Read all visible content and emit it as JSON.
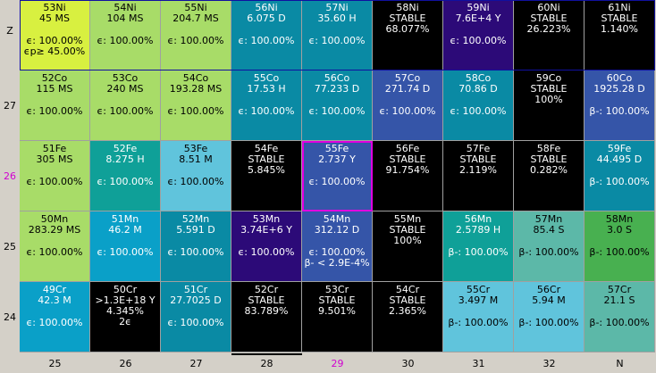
{
  "row_labels": [
    "Z",
    "27",
    "26",
    "25",
    "24"
  ],
  "col_labels": [
    "25",
    "26",
    "27",
    "28",
    "29",
    "30",
    "31",
    "32",
    "N"
  ],
  "highlight_color": "#d000d0",
  "rows": [
    [
      {
        "name": "53Ni",
        "hl": "45 MS",
        "d1": "ϵ: 100.00%",
        "d2": "ϵp≥ 45.00%",
        "bg": "#d8f040",
        "tc": "light"
      },
      {
        "name": "54Ni",
        "hl": "104 MS",
        "d1": "ϵ: 100.00%",
        "d2": "",
        "bg": "#a8dc68",
        "tc": "light"
      },
      {
        "name": "55Ni",
        "hl": "204.7 MS",
        "d1": "ϵ: 100.00%",
        "d2": "",
        "bg": "#a8dc68",
        "tc": "light"
      },
      {
        "name": "56Ni",
        "hl": "6.075 D",
        "d1": "ϵ: 100.00%",
        "d2": "",
        "bg": "#0a8aa4",
        "tc": "dark"
      },
      {
        "name": "57Ni",
        "hl": "35.60 H",
        "d1": "ϵ: 100.00%",
        "d2": "",
        "bg": "#0a8aa4",
        "tc": "dark"
      },
      {
        "name": "58Ni",
        "hl": "STABLE",
        "hl2": "68.077%",
        "d1": "",
        "d2": "",
        "bg": "#000000",
        "tc": "dark"
      },
      {
        "name": "59Ni",
        "hl": "7.6E+4 Y",
        "d1": "ϵ: 100.00%",
        "d2": "",
        "bg": "#2c0a78",
        "tc": "dark"
      },
      {
        "name": "60Ni",
        "hl": "STABLE",
        "hl2": "26.223%",
        "d1": "",
        "d2": "",
        "bg": "#000000",
        "tc": "dark"
      },
      {
        "name": "61Ni",
        "hl": "STABLE",
        "hl2": "1.140%",
        "d1": "",
        "d2": "",
        "bg": "#000000",
        "tc": "dark"
      }
    ],
    [
      {
        "name": "52Co",
        "hl": "115 MS",
        "d1": "ϵ: 100.00%",
        "d2": "",
        "bg": "#a8dc68",
        "tc": "light"
      },
      {
        "name": "53Co",
        "hl": "240 MS",
        "d1": "ϵ: 100.00%",
        "d2": "",
        "bg": "#a8dc68",
        "tc": "light"
      },
      {
        "name": "54Co",
        "hl": "193.28 MS",
        "d1": "ϵ: 100.00%",
        "d2": "",
        "bg": "#a8dc68",
        "tc": "light"
      },
      {
        "name": "55Co",
        "hl": "17.53 H",
        "d1": "ϵ: 100.00%",
        "d2": "",
        "bg": "#0a8aa4",
        "tc": "dark"
      },
      {
        "name": "56Co",
        "hl": "77.233 D",
        "d1": "ϵ: 100.00%",
        "d2": "",
        "bg": "#0a8aa4",
        "tc": "dark"
      },
      {
        "name": "57Co",
        "hl": "271.74 D",
        "d1": "ϵ: 100.00%",
        "d2": "",
        "bg": "#3555a8",
        "tc": "dark"
      },
      {
        "name": "58Co",
        "hl": "70.86 D",
        "d1": "ϵ: 100.00%",
        "d2": "",
        "bg": "#0a8aa4",
        "tc": "dark"
      },
      {
        "name": "59Co",
        "hl": "STABLE",
        "hl2": "100%",
        "d1": "",
        "d2": "",
        "bg": "#000000",
        "tc": "dark"
      },
      {
        "name": "60Co",
        "hl": "1925.28 D",
        "d1": "β-: 100.00%",
        "d2": "",
        "bg": "#3555a8",
        "tc": "dark"
      }
    ],
    [
      {
        "name": "51Fe",
        "hl": "305 MS",
        "d1": "ϵ: 100.00%",
        "d2": "",
        "bg": "#a8dc68",
        "tc": "light"
      },
      {
        "name": "52Fe",
        "hl": "8.275 H",
        "d1": "ϵ: 100.00%",
        "d2": "",
        "bg": "#0fa098",
        "tc": "dark"
      },
      {
        "name": "53Fe",
        "hl": "8.51 M",
        "d1": "ϵ: 100.00%",
        "d2": "",
        "bg": "#60c4dc",
        "tc": "light"
      },
      {
        "name": "54Fe",
        "hl": "STABLE",
        "hl2": "5.845%",
        "d1": "",
        "d2": "",
        "bg": "#000000",
        "tc": "dark"
      },
      {
        "name": "55Fe",
        "hl": "2.737 Y",
        "d1": "ϵ: 100.00%",
        "d2": "",
        "bg": "#3555a8",
        "tc": "dark",
        "sel": true
      },
      {
        "name": "56Fe",
        "hl": "STABLE",
        "hl2": "91.754%",
        "d1": "",
        "d2": "",
        "bg": "#000000",
        "tc": "dark"
      },
      {
        "name": "57Fe",
        "hl": "STABLE",
        "hl2": "2.119%",
        "d1": "",
        "d2": "",
        "bg": "#000000",
        "tc": "dark"
      },
      {
        "name": "58Fe",
        "hl": "STABLE",
        "hl2": "0.282%",
        "d1": "",
        "d2": "",
        "bg": "#000000",
        "tc": "dark"
      },
      {
        "name": "59Fe",
        "hl": "44.495 D",
        "d1": "β-: 100.00%",
        "d2": "",
        "bg": "#0a8aa4",
        "tc": "dark"
      }
    ],
    [
      {
        "name": "50Mn",
        "hl": "283.29 MS",
        "d1": "ϵ: 100.00%",
        "d2": "",
        "bg": "#a8dc68",
        "tc": "light"
      },
      {
        "name": "51Mn",
        "hl": "46.2 M",
        "d1": "ϵ: 100.00%",
        "d2": "",
        "bg": "#0aa0c8",
        "tc": "dark"
      },
      {
        "name": "52Mn",
        "hl": "5.591 D",
        "d1": "ϵ: 100.00%",
        "d2": "",
        "bg": "#0a8aa4",
        "tc": "dark"
      },
      {
        "name": "53Mn",
        "hl": "3.74E+6 Y",
        "d1": "ϵ: 100.00%",
        "d2": "",
        "bg": "#2c0a78",
        "tc": "dark"
      },
      {
        "name": "54Mn",
        "hl": "312.12 D",
        "d1": "ϵ: 100.00%",
        "d2": "β- < 2.9E-4%",
        "bg": "#3555a8",
        "tc": "dark"
      },
      {
        "name": "55Mn",
        "hl": "STABLE",
        "hl2": "100%",
        "d1": "",
        "d2": "",
        "bg": "#000000",
        "tc": "dark"
      },
      {
        "name": "56Mn",
        "hl": "2.5789 H",
        "d1": "β-: 100.00%",
        "d2": "",
        "bg": "#0fa098",
        "tc": "dark"
      },
      {
        "name": "57Mn",
        "hl": "85.4 S",
        "d1": "β-: 100.00%",
        "d2": "",
        "bg": "#5cb8a8",
        "tc": "light"
      },
      {
        "name": "58Mn",
        "hl": "3.0 S",
        "d1": "β-: 100.00%",
        "d2": "",
        "bg": "#48b050",
        "tc": "light"
      }
    ],
    [
      {
        "name": "49Cr",
        "hl": "42.3 M",
        "d1": "ϵ: 100.00%",
        "d2": "",
        "bg": "#0aa0c8",
        "tc": "dark"
      },
      {
        "name": "50Cr",
        "hl": ">1.3E+18 Y",
        "hl2": "4.345%",
        "hl3": "2ϵ",
        "d1": "",
        "d2": "",
        "bg": "#000000",
        "tc": "dark"
      },
      {
        "name": "51Cr",
        "hl": "27.7025 D",
        "d1": "ϵ: 100.00%",
        "d2": "",
        "bg": "#0a8aa4",
        "tc": "dark"
      },
      {
        "name": "52Cr",
        "hl": "STABLE",
        "hl2": "83.789%",
        "d1": "",
        "d2": "",
        "bg": "#000000",
        "tc": "dark"
      },
      {
        "name": "53Cr",
        "hl": "STABLE",
        "hl2": "9.501%",
        "d1": "",
        "d2": "",
        "bg": "#000000",
        "tc": "dark"
      },
      {
        "name": "54Cr",
        "hl": "STABLE",
        "hl2": "2.365%",
        "d1": "",
        "d2": "",
        "bg": "#000000",
        "tc": "dark"
      },
      {
        "name": "55Cr",
        "hl": "3.497 M",
        "d1": "β-: 100.00%",
        "d2": "",
        "bg": "#60c4dc",
        "tc": "light"
      },
      {
        "name": "56Cr",
        "hl": "5.94 M",
        "d1": "β-: 100.00%",
        "d2": "",
        "bg": "#60c4dc",
        "tc": "light"
      },
      {
        "name": "57Cr",
        "hl": "21.1 S",
        "d1": "β-: 100.00%",
        "d2": "",
        "bg": "#5cb8a8",
        "tc": "light"
      }
    ]
  ]
}
